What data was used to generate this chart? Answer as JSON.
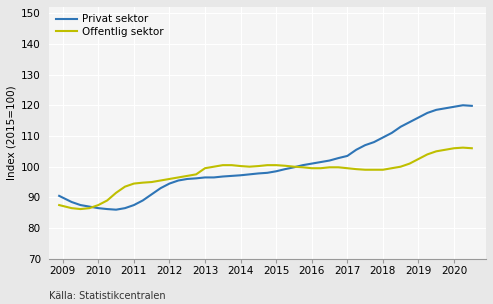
{
  "title": "",
  "ylabel": "Index (2015=100)",
  "source": "Källa: Statistikcentralen",
  "legend_labels": [
    "Privat sektor",
    "Offentlig sektor"
  ],
  "line_colors": [
    "#2E75B6",
    "#BFBF00"
  ],
  "xlim": [
    2008.6,
    2020.9
  ],
  "ylim": [
    70,
    152
  ],
  "yticks": [
    70,
    80,
    90,
    100,
    110,
    120,
    130,
    140,
    150
  ],
  "xticks": [
    2009,
    2010,
    2011,
    2012,
    2013,
    2014,
    2015,
    2016,
    2017,
    2018,
    2019,
    2020
  ],
  "privat_x": [
    2008.9,
    2009.25,
    2009.5,
    2009.75,
    2010.0,
    2010.25,
    2010.5,
    2010.75,
    2011.0,
    2011.25,
    2011.5,
    2011.75,
    2012.0,
    2012.25,
    2012.5,
    2012.75,
    2013.0,
    2013.25,
    2013.5,
    2013.75,
    2014.0,
    2014.25,
    2014.5,
    2014.75,
    2015.0,
    2015.25,
    2015.5,
    2015.75,
    2016.0,
    2016.25,
    2016.5,
    2016.75,
    2017.0,
    2017.25,
    2017.5,
    2017.75,
    2018.0,
    2018.25,
    2018.5,
    2018.75,
    2019.0,
    2019.25,
    2019.5,
    2019.75,
    2020.0,
    2020.25,
    2020.5
  ],
  "privat_y": [
    90.5,
    88.5,
    87.5,
    87.0,
    86.5,
    86.2,
    86.0,
    86.5,
    87.5,
    89.0,
    91.0,
    93.0,
    94.5,
    95.5,
    96.0,
    96.2,
    96.5,
    96.5,
    96.8,
    97.0,
    97.2,
    97.5,
    97.8,
    98.0,
    98.5,
    99.2,
    99.8,
    100.5,
    101.0,
    101.5,
    102.0,
    102.8,
    103.5,
    105.5,
    107.0,
    108.0,
    109.5,
    111.0,
    113.0,
    114.5,
    116.0,
    117.5,
    118.5,
    119.0,
    119.5,
    120.0,
    119.8
  ],
  "offentlig_x": [
    2008.9,
    2009.25,
    2009.5,
    2009.75,
    2010.0,
    2010.25,
    2010.5,
    2010.75,
    2011.0,
    2011.25,
    2011.5,
    2011.75,
    2012.0,
    2012.25,
    2012.5,
    2012.75,
    2013.0,
    2013.25,
    2013.5,
    2013.75,
    2014.0,
    2014.25,
    2014.5,
    2014.75,
    2015.0,
    2015.25,
    2015.5,
    2015.75,
    2016.0,
    2016.25,
    2016.5,
    2016.75,
    2017.0,
    2017.25,
    2017.5,
    2017.75,
    2018.0,
    2018.25,
    2018.5,
    2018.75,
    2019.0,
    2019.25,
    2019.5,
    2019.75,
    2020.0,
    2020.25,
    2020.5
  ],
  "offentlig_y": [
    87.5,
    86.5,
    86.2,
    86.5,
    87.5,
    89.0,
    91.5,
    93.5,
    94.5,
    94.8,
    95.0,
    95.5,
    96.0,
    96.5,
    97.0,
    97.5,
    99.5,
    100.0,
    100.5,
    100.5,
    100.2,
    100.0,
    100.2,
    100.5,
    100.5,
    100.3,
    100.0,
    99.8,
    99.5,
    99.5,
    99.8,
    99.8,
    99.5,
    99.2,
    99.0,
    99.0,
    99.0,
    99.5,
    100.0,
    101.0,
    102.5,
    104.0,
    105.0,
    105.5,
    106.0,
    106.2,
    106.0
  ],
  "background_color": "#e8e8e8",
  "plot_background": "#f5f5f5",
  "grid_color": "#ffffff",
  "line_width": 1.5,
  "tick_fontsize": 7.5,
  "ylabel_fontsize": 7.5,
  "source_fontsize": 7.0,
  "legend_fontsize": 7.5
}
